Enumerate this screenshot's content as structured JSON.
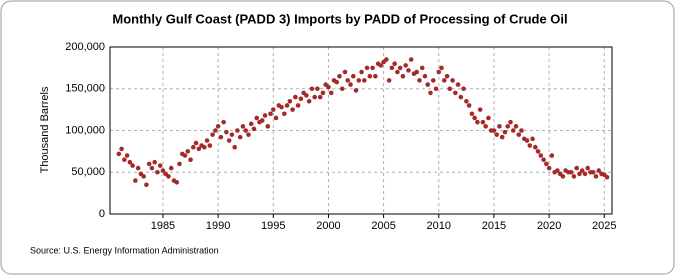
{
  "chart_data": {
    "type": "scatter",
    "title": "Monthly Gulf Coast (PADD 3) Imports by PADD of Processing of Crude Oil",
    "y_label": "Thousand Barrels",
    "source": "Source: U.S. Energy Information Administration",
    "color": "#a52a2a",
    "grid": true,
    "xlim": [
      1980.2,
      2025.7
    ],
    "ylim": [
      0,
      200000
    ],
    "xticks": [
      1985,
      1990,
      1995,
      2000,
      2005,
      2010,
      2015,
      2020,
      2025
    ],
    "yticks": [
      0,
      {
        "value": 50000,
        "label": "50,000"
      },
      {
        "value": 100000,
        "label": "100,000"
      },
      {
        "value": 150000,
        "label": "150,000"
      },
      {
        "value": 200000,
        "label": "200,000"
      }
    ],
    "series": [
      {
        "name": "Gulf Coast (PADD 3) Imports",
        "color": "#a52a2a",
        "x": [
          1981,
          1981.25,
          1981.5,
          1981.75,
          1982,
          1982.25,
          1982.5,
          1982.75,
          1983,
          1983.25,
          1983.5,
          1983.75,
          1984,
          1984.25,
          1984.5,
          1984.75,
          1985,
          1985.25,
          1985.5,
          1985.75,
          1986,
          1986.25,
          1986.5,
          1986.75,
          1987,
          1987.25,
          1987.5,
          1987.75,
          1988,
          1988.25,
          1988.5,
          1988.75,
          1989,
          1989.25,
          1989.5,
          1989.75,
          1990,
          1990.25,
          1990.5,
          1990.75,
          1991,
          1991.25,
          1991.5,
          1991.75,
          1992,
          1992.25,
          1992.5,
          1992.75,
          1993,
          1993.25,
          1993.5,
          1993.75,
          1994,
          1994.25,
          1994.5,
          1994.75,
          1995,
          1995.25,
          1995.5,
          1995.75,
          1996,
          1996.25,
          1996.5,
          1996.75,
          1997,
          1997.25,
          1997.5,
          1997.75,
          1998,
          1998.25,
          1998.5,
          1998.75,
          1999,
          1999.25,
          1999.5,
          1999.75,
          2000,
          2000.25,
          2000.5,
          2000.75,
          2001,
          2001.25,
          2001.5,
          2001.75,
          2002,
          2002.25,
          2002.5,
          2002.75,
          2003,
          2003.25,
          2003.5,
          2003.75,
          2004,
          2004.25,
          2004.5,
          2004.75,
          2005,
          2005.25,
          2005.5,
          2005.75,
          2006,
          2006.25,
          2006.5,
          2006.75,
          2007,
          2007.25,
          2007.5,
          2007.75,
          2008,
          2008.25,
          2008.5,
          2008.75,
          2009,
          2009.25,
          2009.5,
          2009.75,
          2010,
          2010.25,
          2010.5,
          2010.75,
          2011,
          2011.25,
          2011.5,
          2011.75,
          2012,
          2012.25,
          2012.5,
          2012.75,
          2013,
          2013.25,
          2013.5,
          2013.75,
          2014,
          2014.25,
          2014.5,
          2014.75,
          2015,
          2015.25,
          2015.5,
          2015.75,
          2016,
          2016.25,
          2016.5,
          2016.75,
          2017,
          2017.25,
          2017.5,
          2017.75,
          2018,
          2018.25,
          2018.5,
          2018.75,
          2019,
          2019.25,
          2019.5,
          2019.75,
          2020,
          2020.25,
          2020.5,
          2020.75,
          2021,
          2021.25,
          2021.5,
          2021.75,
          2022,
          2022.25,
          2022.5,
          2022.75,
          2023,
          2023.25,
          2023.5,
          2023.75,
          2024,
          2024.25,
          2024.5,
          2024.75,
          2025,
          2025.25
        ],
        "values": [
          72000,
          78000,
          65000,
          70000,
          62000,
          58000,
          40000,
          55000,
          48000,
          45000,
          35000,
          60000,
          55000,
          62000,
          50000,
          58000,
          52000,
          48000,
          45000,
          55000,
          40000,
          38000,
          60000,
          72000,
          70000,
          75000,
          65000,
          80000,
          85000,
          78000,
          82000,
          80000,
          88000,
          82000,
          95000,
          100000,
          105000,
          92000,
          110000,
          98000,
          88000,
          95000,
          80000,
          100000,
          92000,
          105000,
          100000,
          95000,
          108000,
          102000,
          115000,
          110000,
          112000,
          118000,
          105000,
          120000,
          125000,
          115000,
          130000,
          128000,
          120000,
          130000,
          135000,
          125000,
          140000,
          130000,
          138000,
          145000,
          142000,
          135000,
          150000,
          140000,
          150000,
          140000,
          145000,
          155000,
          152000,
          145000,
          160000,
          158000,
          165000,
          150000,
          170000,
          160000,
          155000,
          165000,
          148000,
          160000,
          170000,
          160000,
          175000,
          165000,
          175000,
          165000,
          180000,
          178000,
          182000,
          185000,
          160000,
          175000,
          180000,
          170000,
          175000,
          165000,
          178000,
          172000,
          185000,
          168000,
          170000,
          160000,
          175000,
          165000,
          155000,
          145000,
          160000,
          150000,
          170000,
          175000,
          160000,
          165000,
          150000,
          160000,
          145000,
          155000,
          140000,
          150000,
          135000,
          130000,
          120000,
          115000,
          110000,
          125000,
          110000,
          105000,
          115000,
          100000,
          100000,
          95000,
          105000,
          92000,
          98000,
          105000,
          110000,
          100000,
          105000,
          95000,
          100000,
          90000,
          88000,
          82000,
          90000,
          80000,
          75000,
          70000,
          65000,
          60000,
          55000,
          70000,
          50000,
          52000,
          48000,
          45000,
          52000,
          50000,
          50000,
          45000,
          55000,
          48000,
          52000,
          48000,
          55000,
          50000,
          50000,
          45000,
          52000,
          48000,
          47000,
          44000
        ]
      }
    ]
  }
}
